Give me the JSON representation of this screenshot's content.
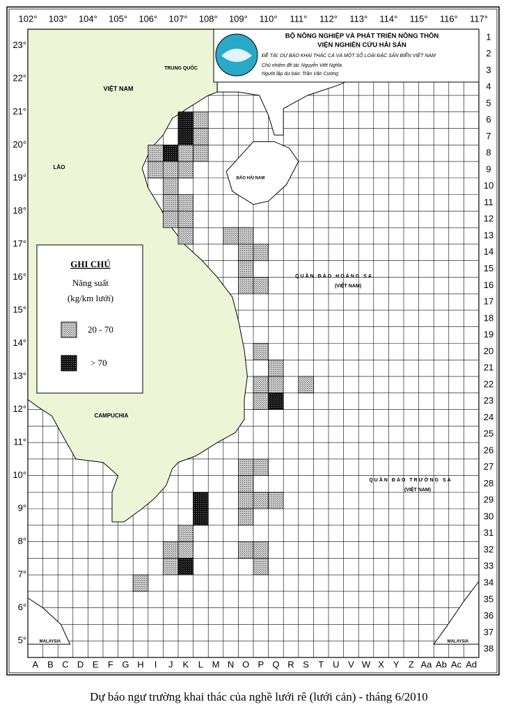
{
  "header": {
    "title_line1": "BỘ NÔNG NGHIỆP VÀ PHÁT TRIỂN NÔNG THÔN",
    "title_line2": "VIỆN NGHIÊN CỨU HẢI SẢN",
    "project": "ĐỀ TÀI: DỰ BÁO KHAI THÁC CÁ VÀ MỘT SỐ LOÀI ĐẶC SẢN BIỂN VIỆT NAM",
    "lead": "Chủ nhiệm đề tài: Nguyễn Viết Nghĩa",
    "forecaster": "Người lập dự báo: Trần Văn Cường"
  },
  "legend": {
    "title": "GHI CHÚ",
    "subtitle_line1": "Năng suất",
    "subtitle_line2": "(kg/km lưới)",
    "items": [
      "20 - 70",
      "> 70"
    ]
  },
  "longitudes": [
    "102°",
    "103°",
    "104°",
    "105°",
    "106°",
    "107°",
    "108°",
    "109°",
    "110°",
    "111°",
    "112°",
    "113°",
    "114°",
    "115°",
    "116°",
    "117°"
  ],
  "latitudes": [
    "23°",
    "22°",
    "21°",
    "20°",
    "19°",
    "18°",
    "17°",
    "16°",
    "15°",
    "14°",
    "13°",
    "12°",
    "11°",
    "10°",
    "9°",
    "8°",
    "7°",
    "6°",
    "5°"
  ],
  "columns": [
    "A",
    "B",
    "C",
    "D",
    "E",
    "F",
    "G",
    "H",
    "I",
    "J",
    "K",
    "L",
    "M",
    "N",
    "O",
    "P",
    "Q",
    "R",
    "S",
    "T",
    "U",
    "V",
    "W",
    "X",
    "Y",
    "Z",
    "Aa",
    "Ab",
    "Ac",
    "Ad"
  ],
  "rows": [
    1,
    2,
    3,
    4,
    5,
    6,
    7,
    8,
    9,
    10,
    11,
    12,
    13,
    14,
    15,
    16,
    17,
    18,
    19,
    20,
    21,
    22,
    23,
    24,
    25,
    26,
    27,
    28,
    29,
    30,
    31,
    32,
    33,
    34,
    35,
    36,
    37,
    38
  ],
  "cells": [
    {
      "column": "K",
      "row": 6,
      "level": 1
    },
    {
      "column": "L",
      "row": 6,
      "level": 0
    },
    {
      "column": "K",
      "row": 7,
      "level": 1
    },
    {
      "column": "L",
      "row": 7,
      "level": 0
    },
    {
      "column": "I",
      "row": 8,
      "level": 0
    },
    {
      "column": "J",
      "row": 8,
      "level": 1
    },
    {
      "column": "K",
      "row": 8,
      "level": 0
    },
    {
      "column": "L",
      "row": 8,
      "level": 0
    },
    {
      "column": "I",
      "row": 9,
      "level": 0
    },
    {
      "column": "J",
      "row": 9,
      "level": 0
    },
    {
      "column": "K",
      "row": 9,
      "level": 0
    },
    {
      "column": "J",
      "row": 10,
      "level": 0
    },
    {
      "column": "J",
      "row": 11,
      "level": 0
    },
    {
      "column": "K",
      "row": 11,
      "level": 0
    },
    {
      "column": "J",
      "row": 12,
      "level": 0
    },
    {
      "column": "K",
      "row": 12,
      "level": 0
    },
    {
      "column": "K",
      "row": 13,
      "level": 0
    },
    {
      "column": "N",
      "row": 13,
      "level": 0
    },
    {
      "column": "O",
      "row": 13,
      "level": 0
    },
    {
      "column": "O",
      "row": 14,
      "level": 0
    },
    {
      "column": "P",
      "row": 14,
      "level": 0
    },
    {
      "column": "O",
      "row": 15,
      "level": 0
    },
    {
      "column": "O",
      "row": 16,
      "level": 0
    },
    {
      "column": "P",
      "row": 16,
      "level": 0
    },
    {
      "column": "P",
      "row": 20,
      "level": 0
    },
    {
      "column": "Q",
      "row": 21,
      "level": 0
    },
    {
      "column": "P",
      "row": 22,
      "level": 0
    },
    {
      "column": "Q",
      "row": 22,
      "level": 0
    },
    {
      "column": "S",
      "row": 22,
      "level": 0
    },
    {
      "column": "P",
      "row": 23,
      "level": 0
    },
    {
      "column": "Q",
      "row": 23,
      "level": 1
    },
    {
      "column": "O",
      "row": 27,
      "level": 0
    },
    {
      "column": "P",
      "row": 27,
      "level": 0
    },
    {
      "column": "O",
      "row": 28,
      "level": 0
    },
    {
      "column": "L",
      "row": 29,
      "level": 1
    },
    {
      "column": "O",
      "row": 29,
      "level": 0
    },
    {
      "column": "P",
      "row": 29,
      "level": 0
    },
    {
      "column": "Q",
      "row": 29,
      "level": 0
    },
    {
      "column": "L",
      "row": 30,
      "level": 1
    },
    {
      "column": "O",
      "row": 30,
      "level": 0
    },
    {
      "column": "K",
      "row": 31,
      "level": 0
    },
    {
      "column": "J",
      "row": 32,
      "level": 0
    },
    {
      "column": "K",
      "row": 32,
      "level": 0
    },
    {
      "column": "O",
      "row": 32,
      "level": 0
    },
    {
      "column": "P",
      "row": 32,
      "level": 0
    },
    {
      "column": "J",
      "row": 33,
      "level": 0
    },
    {
      "column": "K",
      "row": 33,
      "level": 1
    },
    {
      "column": "P",
      "row": 33,
      "level": 0
    },
    {
      "column": "H",
      "row": 34,
      "level": 0
    }
  ],
  "places": [
    "VIỆT NAM",
    "TRUNG QUỐC",
    "LÀO",
    "CAMPUCHIA",
    "ĐẢO HẢI NAM",
    "QUẦN ĐẢO HOÀNG SA",
    "(VIỆT NAM)",
    "QUẦN ĐẢO TRƯỜNG SA",
    "(VIỆT NAM)",
    "MALAYSIA",
    "MALAYSIA"
  ],
  "caption": "Dự báo ngư trường khai thác của nghề lưới rê (lưới cản) - tháng 6/2010"
}
